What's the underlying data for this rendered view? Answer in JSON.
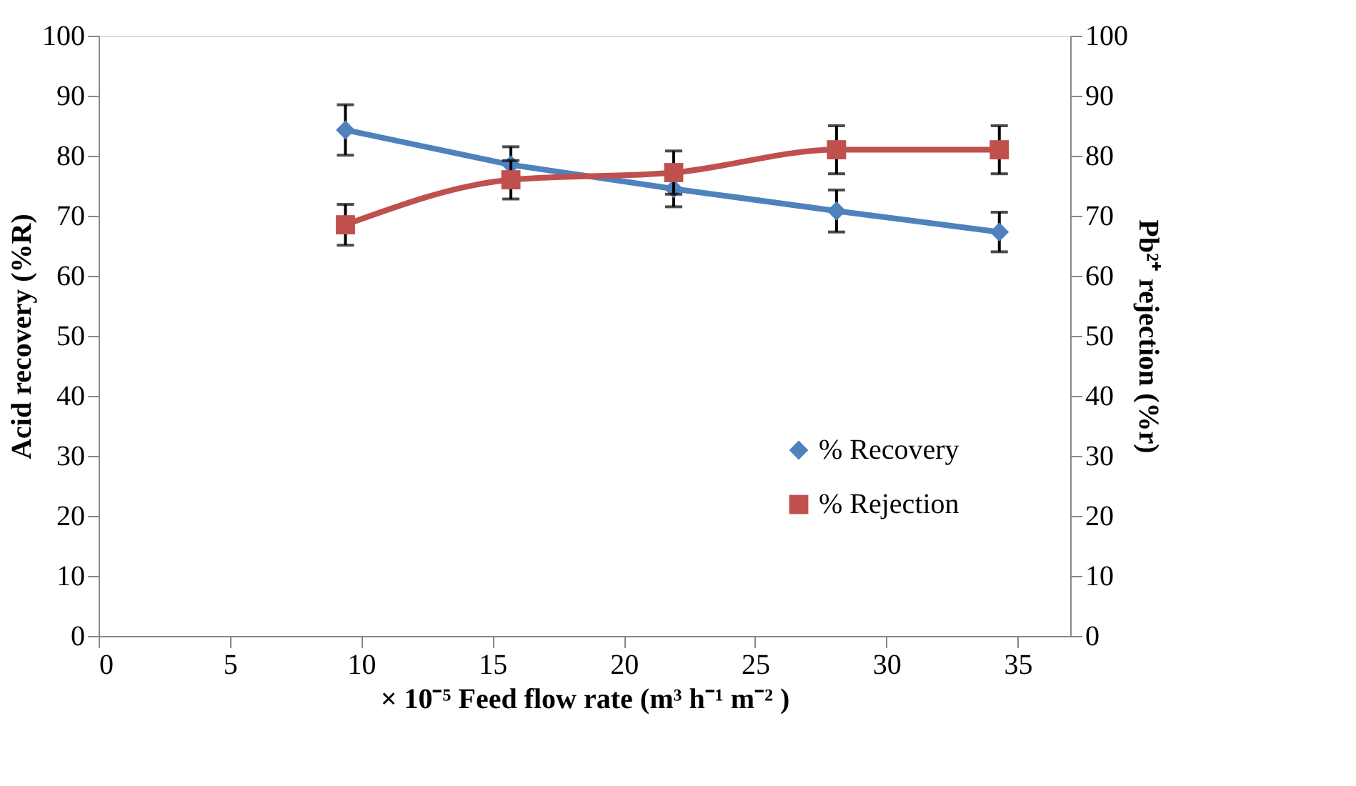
{
  "chart_data": {
    "type": "line",
    "xlabel": "× 10⁻⁵ Feed flow rate (m³ h⁻¹ m⁻² )",
    "ylabel": "Acid recovery (%R)",
    "y2label": "Pb²⁺ rejection (%r)",
    "x": [
      9.4,
      15.7,
      21.9,
      28.1,
      34.3
    ],
    "series": [
      {
        "name": "% Recovery",
        "color": "#4f81bd",
        "marker": "diamond",
        "axis": "y",
        "values": [
          84.3,
          78.5,
          74.5,
          70.8,
          67.3
        ],
        "errors": [
          4.2,
          3,
          3,
          3.5,
          3.3
        ]
      },
      {
        "name": "% Rejection",
        "color": "#c0504d",
        "marker": "square",
        "axis": "y2",
        "values": [
          68.5,
          76,
          77.2,
          81,
          81
        ],
        "errors": [
          3.4,
          3.2,
          3.6,
          4,
          4
        ]
      }
    ],
    "xlim": [
      0,
      37
    ],
    "xticks": [
      0,
      5,
      10,
      15,
      20,
      25,
      30,
      35
    ],
    "ylim": [
      0,
      100
    ],
    "yticks": [
      0,
      10,
      20,
      30,
      40,
      50,
      60,
      70,
      80,
      90,
      100
    ],
    "y2lim": [
      0,
      100
    ],
    "y2ticks": [
      0,
      10,
      20,
      30,
      40,
      50,
      60,
      70,
      80,
      90,
      100
    ],
    "grid": false,
    "legend": "bottom right"
  }
}
